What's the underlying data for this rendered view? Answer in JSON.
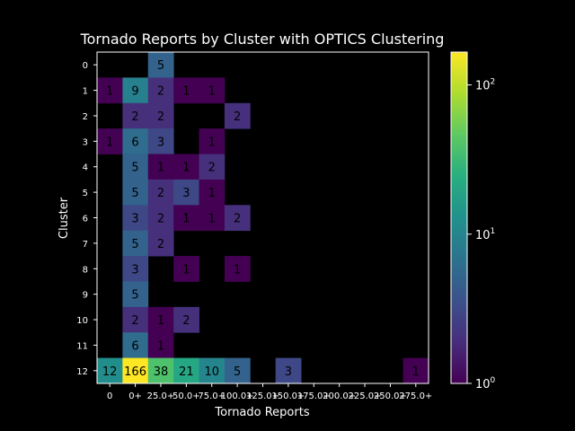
{
  "chart_data": {
    "type": "heatmap",
    "title": "Tornado Reports by Cluster with OPTICS Clustering",
    "xlabel": "Tornado Reports",
    "ylabel": "Cluster",
    "x_categories": [
      "0",
      "0+",
      "25.0+",
      "50.0+",
      "75.0+",
      "100.0+",
      "125.0+",
      "150.0+",
      "175.0+",
      "200.0+",
      "225.0+",
      "250.0+",
      "275.0+"
    ],
    "y_categories": [
      "0",
      "1",
      "2",
      "3",
      "4",
      "5",
      "6",
      "7",
      "8",
      "9",
      "10",
      "11",
      "12"
    ],
    "values": [
      [
        null,
        null,
        5,
        null,
        null,
        null,
        null,
        null,
        null,
        null,
        null,
        null,
        null
      ],
      [
        1,
        9,
        2,
        1,
        1,
        null,
        null,
        null,
        null,
        null,
        null,
        null,
        null
      ],
      [
        null,
        2,
        2,
        null,
        null,
        2,
        null,
        null,
        null,
        null,
        null,
        null,
        null
      ],
      [
        1,
        6,
        3,
        null,
        1,
        null,
        null,
        null,
        null,
        null,
        null,
        null,
        null
      ],
      [
        null,
        5,
        1,
        1,
        2,
        null,
        null,
        null,
        null,
        null,
        null,
        null,
        null
      ],
      [
        null,
        5,
        2,
        3,
        1,
        null,
        null,
        null,
        null,
        null,
        null,
        null,
        null
      ],
      [
        null,
        3,
        2,
        1,
        1,
        2,
        null,
        null,
        null,
        null,
        null,
        null,
        null
      ],
      [
        null,
        5,
        2,
        null,
        null,
        null,
        null,
        null,
        null,
        null,
        null,
        null,
        null
      ],
      [
        null,
        3,
        null,
        1,
        null,
        1,
        null,
        null,
        null,
        null,
        null,
        null,
        null
      ],
      [
        null,
        5,
        null,
        null,
        null,
        null,
        null,
        null,
        null,
        null,
        null,
        null,
        null
      ],
      [
        null,
        2,
        1,
        2,
        null,
        null,
        null,
        null,
        null,
        null,
        null,
        null,
        null
      ],
      [
        null,
        6,
        1,
        null,
        null,
        null,
        null,
        null,
        null,
        null,
        null,
        null,
        null
      ],
      [
        12,
        166,
        38,
        21,
        10,
        5,
        null,
        3,
        null,
        null,
        null,
        null,
        1
      ]
    ],
    "colorbar": {
      "scale": "log",
      "range": [
        1,
        166
      ],
      "colormap": "viridis",
      "ticks": [
        {
          "value": 1,
          "base": "10",
          "exp": "0"
        },
        {
          "value": 10,
          "base": "10",
          "exp": "1"
        },
        {
          "value": 100,
          "base": "10",
          "exp": "2"
        }
      ]
    },
    "background": "#000000"
  }
}
